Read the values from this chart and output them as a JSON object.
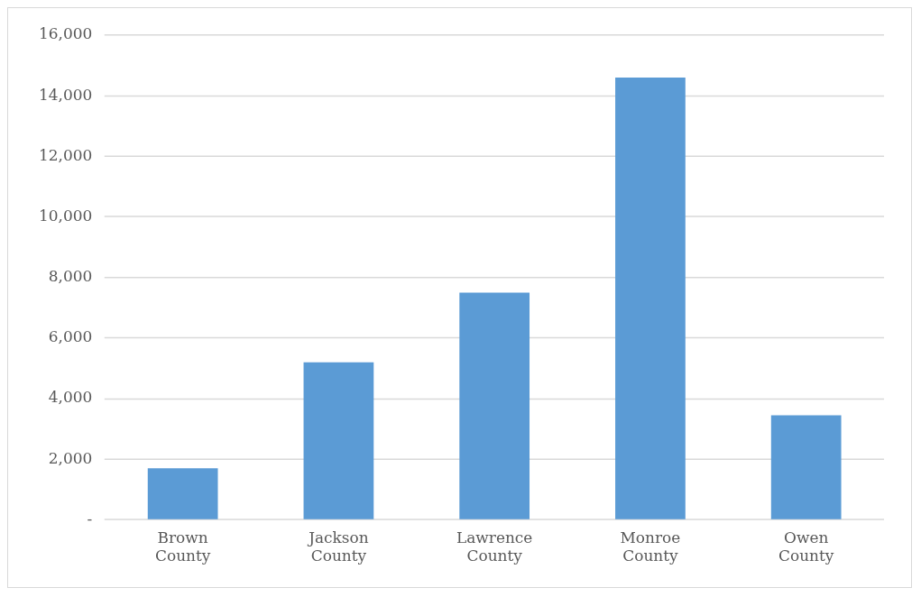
{
  "chart_data": {
    "type": "bar",
    "categories": [
      "Brown County",
      "Jackson County",
      "Lawrence County",
      "Monroe County",
      "Owen County"
    ],
    "values": [
      1700,
      5200,
      7500,
      14600,
      3450
    ],
    "color": "#5b9bd5",
    "ylim": [
      0,
      16000
    ],
    "yticks": [
      {
        "value": 0,
        "label": "-"
      },
      {
        "value": 2000,
        "label": "2,000"
      },
      {
        "value": 4000,
        "label": "4,000"
      },
      {
        "value": 6000,
        "label": "6,000"
      },
      {
        "value": 8000,
        "label": "8,000"
      },
      {
        "value": 10000,
        "label": "10,000"
      },
      {
        "value": 12000,
        "label": "12,000"
      },
      {
        "value": 14000,
        "label": "14,000"
      },
      {
        "value": 16000,
        "label": "16,000"
      }
    ],
    "grid": "y"
  }
}
